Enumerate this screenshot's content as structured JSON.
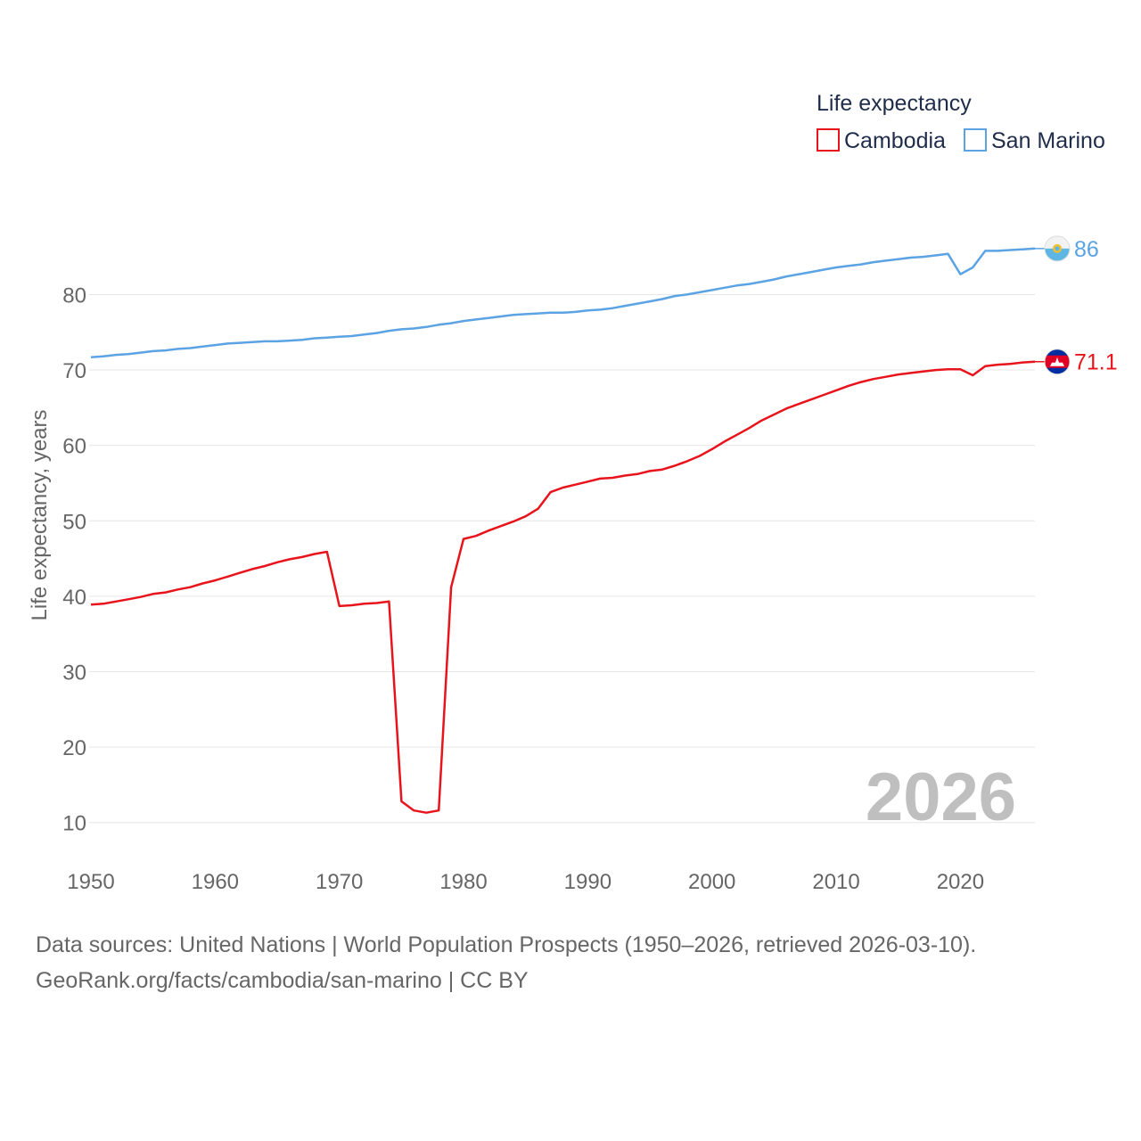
{
  "chart_data": {
    "type": "line",
    "legend_title": "Life expectancy",
    "ylabel": "Life expectancy, years",
    "xlim": [
      1950,
      2026
    ],
    "ylim": [
      5,
      94
    ],
    "y_ticks": [
      10,
      20,
      30,
      40,
      50,
      60,
      70,
      80
    ],
    "x_ticks": [
      1950,
      1960,
      1970,
      1980,
      1990,
      2000,
      2010,
      2020
    ],
    "current_year": "2026",
    "legend_position": "top-right",
    "x": [
      1950,
      1951,
      1952,
      1953,
      1954,
      1955,
      1956,
      1957,
      1958,
      1959,
      1960,
      1961,
      1962,
      1963,
      1964,
      1965,
      1966,
      1967,
      1968,
      1969,
      1970,
      1971,
      1972,
      1973,
      1974,
      1975,
      1976,
      1977,
      1978,
      1979,
      1980,
      1981,
      1982,
      1983,
      1984,
      1985,
      1986,
      1987,
      1988,
      1989,
      1990,
      1991,
      1992,
      1993,
      1994,
      1995,
      1996,
      1997,
      1998,
      1999,
      2000,
      2001,
      2002,
      2003,
      2004,
      2005,
      2006,
      2007,
      2008,
      2009,
      2010,
      2011,
      2012,
      2013,
      2014,
      2015,
      2016,
      2017,
      2018,
      2019,
      2020,
      2021,
      2022,
      2023,
      2024,
      2025,
      2026
    ],
    "series": [
      {
        "name": "Cambodia",
        "color": "#e8141c",
        "end_label": "71.1",
        "flag": "cambodia-flag-icon",
        "values": [
          38.9,
          39.0,
          39.3,
          39.6,
          39.9,
          40.3,
          40.5,
          40.9,
          41.2,
          41.7,
          42.1,
          42.6,
          43.1,
          43.6,
          44.0,
          44.5,
          44.9,
          45.2,
          45.6,
          45.9,
          38.7,
          38.8,
          39.0,
          39.1,
          39.3,
          12.8,
          11.6,
          11.3,
          11.6,
          41.2,
          47.6,
          48.0,
          48.7,
          49.3,
          49.9,
          50.6,
          51.6,
          53.8,
          54.4,
          54.8,
          55.2,
          55.6,
          55.7,
          56.0,
          56.2,
          56.6,
          56.8,
          57.3,
          57.9,
          58.6,
          59.5,
          60.5,
          61.4,
          62.3,
          63.3,
          64.1,
          64.9,
          65.5,
          66.1,
          66.7,
          67.3,
          67.9,
          68.4,
          68.8,
          69.1,
          69.4,
          69.6,
          69.8,
          70.0,
          70.1,
          70.1,
          69.3,
          70.5,
          70.7,
          70.8,
          71.0,
          71.1
        ]
      },
      {
        "name": "San Marino",
        "color": "#5ba3e3",
        "end_label": "86",
        "flag": "san-marino-flag-icon",
        "values": [
          71.7,
          71.8,
          72.0,
          72.1,
          72.3,
          72.5,
          72.6,
          72.8,
          72.9,
          73.1,
          73.3,
          73.5,
          73.6,
          73.7,
          73.8,
          73.8,
          73.9,
          74.0,
          74.2,
          74.3,
          74.4,
          74.5,
          74.7,
          74.9,
          75.2,
          75.4,
          75.5,
          75.7,
          76.0,
          76.2,
          76.5,
          76.7,
          76.9,
          77.1,
          77.3,
          77.4,
          77.5,
          77.6,
          77.6,
          77.7,
          77.9,
          78.0,
          78.2,
          78.5,
          78.8,
          79.1,
          79.4,
          79.8,
          80.0,
          80.3,
          80.6,
          80.9,
          81.2,
          81.4,
          81.7,
          82.0,
          82.4,
          82.7,
          83.0,
          83.3,
          83.6,
          83.8,
          84.0,
          84.3,
          84.5,
          84.7,
          84.9,
          85.0,
          85.2,
          85.4,
          82.7,
          83.6,
          85.8,
          85.8,
          85.9,
          86.0,
          86.1
        ]
      }
    ]
  },
  "footer": {
    "source_line": "Data sources: United Nations | World Population Prospects (1950–2026, retrieved 2026-03-10).",
    "credit_line": "GeoRank.org/facts/cambodia/san-marino | CC BY"
  }
}
